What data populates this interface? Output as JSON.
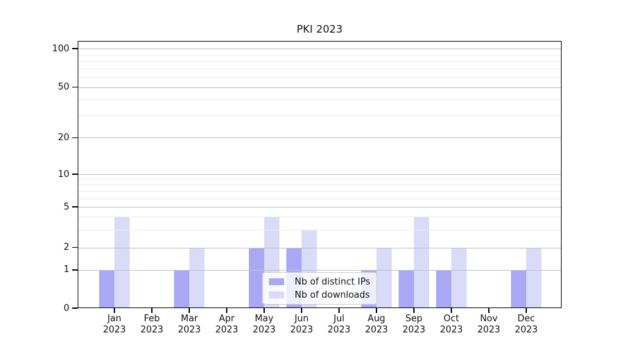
{
  "chart_data": {
    "type": "bar",
    "title": "PKI 2023",
    "categories": [
      "Jan",
      "Feb",
      "Mar",
      "Apr",
      "May",
      "Jun",
      "Jul",
      "Aug",
      "Sep",
      "Oct",
      "Nov",
      "Dec"
    ],
    "category_year": "2023",
    "series": [
      {
        "key": "ips",
        "name": "Nb of distinct IPs",
        "color": "#a8a8f5",
        "values": [
          1,
          0,
          1,
          0,
          2,
          2,
          0,
          1,
          1,
          1,
          0,
          1
        ]
      },
      {
        "key": "downloads",
        "name": "Nb of downloads",
        "color": "#dadaf9",
        "values": [
          4,
          0,
          2,
          0,
          4,
          3,
          0,
          2,
          4,
          2,
          0,
          2
        ]
      }
    ],
    "y_axis": {
      "scale": "log-like",
      "ticks": [
        0,
        1,
        2,
        5,
        10,
        20,
        50,
        100
      ],
      "minor_ticks": [
        3,
        4,
        6,
        7,
        8,
        9,
        30,
        40,
        60,
        70,
        80,
        90
      ],
      "ylim": [
        0,
        120
      ]
    },
    "x_axis": {
      "tick_label_lines": 2
    },
    "grid": {
      "major_color": "#c3c3c3",
      "minor_color": "#ededed",
      "orientation": "horizontal"
    },
    "legend": {
      "position": "inside-bottom-center"
    },
    "colors": {
      "axis": "#0d0d0d",
      "background": "#ffffff"
    }
  }
}
